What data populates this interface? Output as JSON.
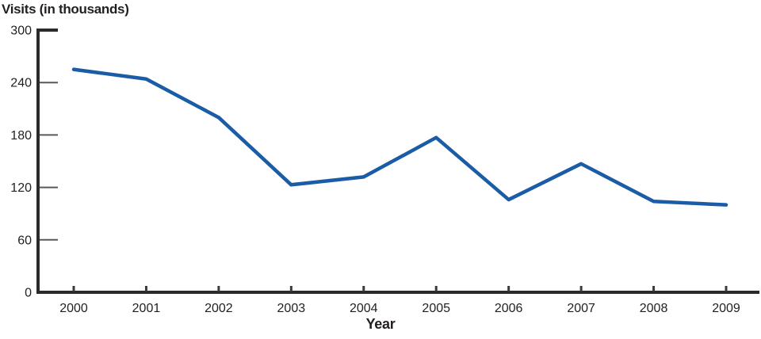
{
  "chart_data": {
    "type": "line",
    "title": "Visits (in thousands)",
    "xlabel": "Year",
    "ylabel": "Visits (in thousands)",
    "categories": [
      "2000",
      "2001",
      "2002",
      "2003",
      "2004",
      "2005",
      "2006",
      "2007",
      "2008",
      "2009"
    ],
    "values": [
      255,
      244,
      200,
      123,
      132,
      177,
      106,
      147,
      104,
      100
    ],
    "series_name": "Visits",
    "y_ticks": [
      0,
      60,
      120,
      180,
      240,
      300
    ],
    "ylim": [
      0,
      300
    ],
    "grid": false,
    "legend_position": "none",
    "colors": {
      "line": "#1b5ca6",
      "axis": "#2b2a29",
      "minor_tick": "#59595b",
      "x_tick": "#3a3a3a",
      "text": "#231f20"
    }
  }
}
